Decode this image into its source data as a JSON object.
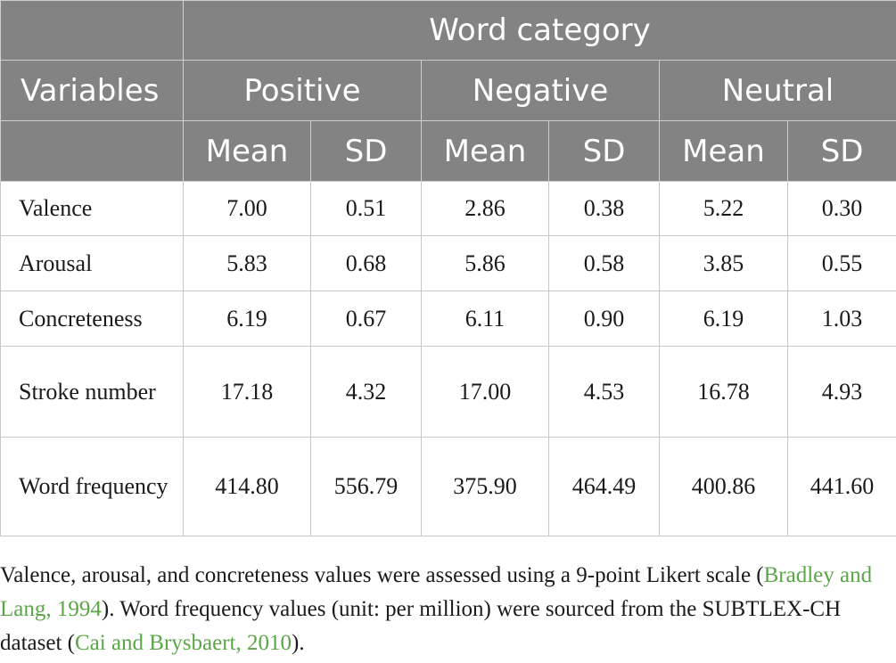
{
  "table": {
    "variables_header": "Variables",
    "group_header": "Word category",
    "categories": [
      "Positive",
      "Negative",
      "Neutral"
    ],
    "stats": [
      "Mean",
      "SD"
    ],
    "rows": [
      {
        "label": "Valence",
        "values": [
          "7.00",
          "0.51",
          "2.86",
          "0.38",
          "5.22",
          "0.30"
        ]
      },
      {
        "label": "Arousal",
        "values": [
          "5.83",
          "0.68",
          "5.86",
          "0.58",
          "3.85",
          "0.55"
        ]
      },
      {
        "label": "Concreteness",
        "values": [
          "6.19",
          "0.67",
          "6.11",
          "0.90",
          "6.19",
          "1.03"
        ]
      },
      {
        "label": "Stroke number",
        "values": [
          "17.18",
          "4.32",
          "17.00",
          "4.53",
          "16.78",
          "4.93"
        ]
      },
      {
        "label": "Word frequency",
        "values": [
          "414.80",
          "556.79",
          "375.90",
          "464.49",
          "400.86",
          "441.60"
        ]
      }
    ]
  },
  "footnote": {
    "part1": "Valence, arousal, and concreteness values were assessed using a 9-point Likert scale (",
    "cite1": "Bradley and Lang, 1994",
    "part2": "). Word frequency values (unit: per million) were sourced from the SUBTLEX-CH dataset (",
    "cite2": "Cai and Brysbaert, 2010",
    "part3": ")."
  },
  "colors": {
    "header_bg": "#838383",
    "header_text": "#ffffff",
    "border": "#c8c8c8",
    "citation_link": "#5aa646"
  }
}
